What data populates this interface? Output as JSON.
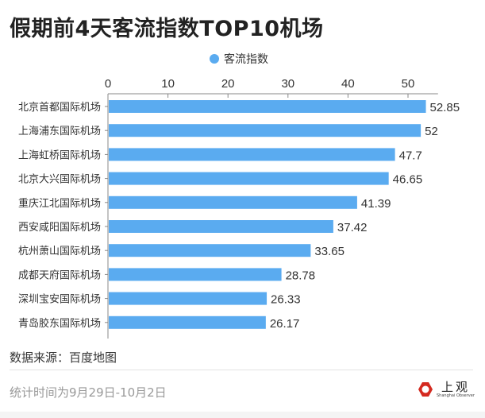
{
  "title": "假期前4天客流指数TOP10机场",
  "legend": {
    "label": "客流指数",
    "color": "#5aabf0"
  },
  "chart_data": {
    "type": "bar",
    "orientation": "horizontal",
    "title": "假期前4天客流指数TOP10机场",
    "categories": [
      "北京首都国际机场",
      "上海浦东国际机场",
      "上海虹桥国际机场",
      "北京大兴国际机场",
      "重庆江北国际机场",
      "西安咸阳国际机场",
      "杭州萧山国际机场",
      "成都天府国际机场",
      "深圳宝安国际机场",
      "青岛胶东国际机场"
    ],
    "series": [
      {
        "name": "客流指数",
        "values": [
          52.85,
          52,
          47.7,
          46.65,
          41.39,
          37.42,
          33.65,
          28.78,
          26.33,
          26.17
        ]
      }
    ],
    "value_labels": [
      "52.85",
      "52",
      "47.7",
      "46.65",
      "41.39",
      "37.42",
      "33.65",
      "28.78",
      "26.33",
      "26.17"
    ],
    "xticks": [
      "0",
      "10",
      "20",
      "30",
      "40",
      "50"
    ],
    "xlim": [
      0,
      55
    ],
    "axis_position": "top",
    "legend_position": "top-center",
    "grid": false
  },
  "footer": {
    "source": "数据来源：百度地图",
    "period": "统计时间为9月29日-10月2日",
    "logo": {
      "cn": "上观",
      "en": "Shanghai Observer"
    }
  }
}
